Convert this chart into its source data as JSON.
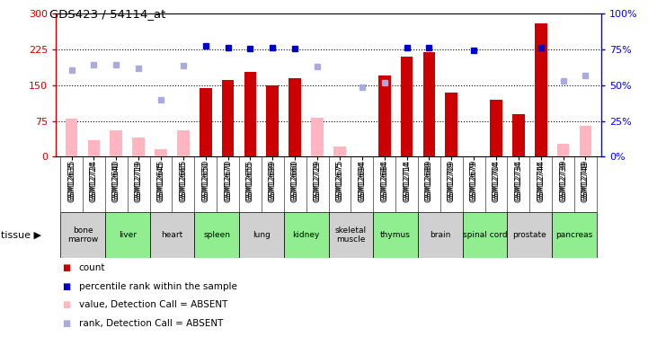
{
  "title": "GDS423 / 54114_at",
  "samples": [
    "GSM12635",
    "GSM12724",
    "GSM12640",
    "GSM12719",
    "GSM12645",
    "GSM12665",
    "GSM12650",
    "GSM12670",
    "GSM12655",
    "GSM12699",
    "GSM12660",
    "GSM12729",
    "GSM12675",
    "GSM12694",
    "GSM12684",
    "GSM12714",
    "GSM12689",
    "GSM12709",
    "GSM12679",
    "GSM12704",
    "GSM12734",
    "GSM12744",
    "GSM12739",
    "GSM12749"
  ],
  "tissues": [
    {
      "name": "bone\nmarrow",
      "start": 0,
      "end": 2,
      "color": "#d0d0d0"
    },
    {
      "name": "liver",
      "start": 2,
      "end": 4,
      "color": "#90ee90"
    },
    {
      "name": "heart",
      "start": 4,
      "end": 6,
      "color": "#d0d0d0"
    },
    {
      "name": "spleen",
      "start": 6,
      "end": 8,
      "color": "#90ee90"
    },
    {
      "name": "lung",
      "start": 8,
      "end": 10,
      "color": "#d0d0d0"
    },
    {
      "name": "kidney",
      "start": 10,
      "end": 12,
      "color": "#90ee90"
    },
    {
      "name": "skeletal\nmuscle",
      "start": 12,
      "end": 14,
      "color": "#d0d0d0"
    },
    {
      "name": "thymus",
      "start": 14,
      "end": 16,
      "color": "#90ee90"
    },
    {
      "name": "brain",
      "start": 16,
      "end": 18,
      "color": "#d0d0d0"
    },
    {
      "name": "spinal cord",
      "start": 18,
      "end": 20,
      "color": "#90ee90"
    },
    {
      "name": "prostate",
      "start": 20,
      "end": 22,
      "color": "#d0d0d0"
    },
    {
      "name": "pancreas",
      "start": 22,
      "end": 24,
      "color": "#90ee90"
    }
  ],
  "red_bars": [
    null,
    null,
    null,
    null,
    null,
    null,
    143,
    160,
    178,
    150,
    165,
    null,
    null,
    null,
    170,
    210,
    220,
    135,
    null,
    120,
    90,
    280,
    null,
    null
  ],
  "pink_bars": [
    80,
    35,
    55,
    40,
    15,
    55,
    null,
    null,
    null,
    null,
    null,
    82,
    22,
    null,
    null,
    null,
    null,
    null,
    null,
    null,
    null,
    null,
    28,
    65
  ],
  "blue_sq": [
    null,
    null,
    null,
    null,
    null,
    null,
    233,
    228,
    227,
    228,
    227,
    null,
    null,
    null,
    null,
    228,
    228,
    null,
    222,
    null,
    null,
    228,
    null,
    null
  ],
  "lblue_sq": [
    182,
    193,
    192,
    186,
    120,
    190,
    null,
    null,
    null,
    null,
    null,
    188,
    null,
    145,
    155,
    null,
    null,
    null,
    null,
    null,
    null,
    null,
    158,
    170
  ],
  "ylim_left": [
    0,
    300
  ],
  "ylim_right": [
    0,
    100
  ],
  "yticks_left": [
    0,
    75,
    150,
    225,
    300
  ],
  "yticks_right": [
    0,
    25,
    50,
    75,
    100
  ],
  "bar_color_red": "#cc0000",
  "bar_color_pink": "#ffb6c1",
  "dot_color_blue": "#0000cc",
  "dot_color_lightblue": "#aaaadd"
}
